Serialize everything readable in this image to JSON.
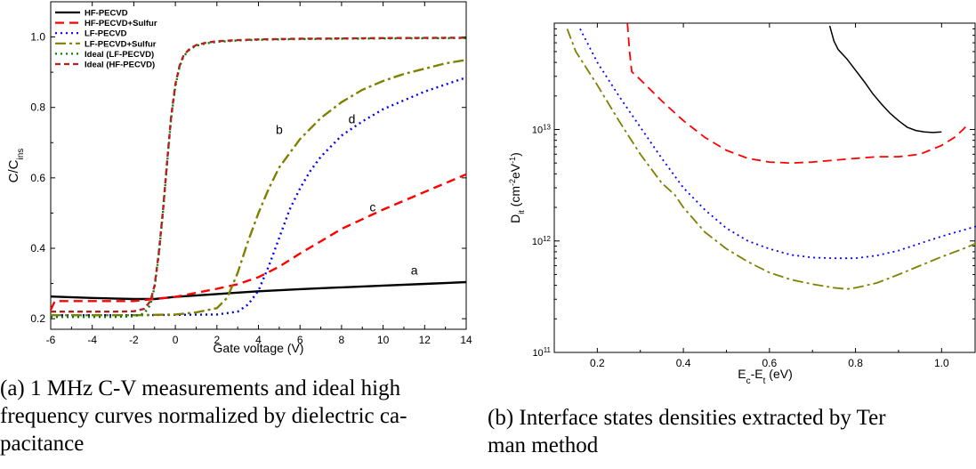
{
  "chart_data": [
    {
      "type": "line",
      "panel": "a",
      "xlabel": "Gate voltage (V)",
      "ylabel_main": "C/C",
      "ylabel_sub": "ins",
      "xlim": [
        -6,
        14
      ],
      "ylim": [
        0.17,
        1.1
      ],
      "xticks": [
        "-6",
        "-4",
        "-2",
        "0",
        "2",
        "4",
        "6",
        "8",
        "10",
        "12",
        "14"
      ],
      "yticks": [
        "0.2",
        "0.4",
        "0.6",
        "0.8",
        "1.0"
      ],
      "legend_position": "top-left",
      "series": [
        {
          "name": "HF-PECVD",
          "color": "#000000",
          "dash": "solid",
          "x": [
            -6,
            -4,
            -2,
            -1,
            0,
            2,
            4,
            6,
            8,
            10,
            12,
            14
          ],
          "y": [
            0.263,
            0.259,
            0.256,
            0.256,
            0.262,
            0.27,
            0.278,
            0.284,
            0.289,
            0.294,
            0.299,
            0.304
          ]
        },
        {
          "name": "HF-PECVD+Sulfur",
          "color": "#ff0000",
          "dash": "long",
          "x": [
            -6,
            -5.8,
            -4,
            -2,
            0,
            2,
            3,
            4,
            5,
            6,
            7,
            8,
            10,
            12,
            14
          ],
          "y": [
            0.225,
            0.25,
            0.25,
            0.25,
            0.262,
            0.285,
            0.298,
            0.318,
            0.348,
            0.385,
            0.42,
            0.455,
            0.51,
            0.56,
            0.61
          ]
        },
        {
          "name": "LF-PECVD",
          "color": "#0000ff",
          "dash": "dot",
          "x": [
            -6,
            -2,
            0,
            2,
            3,
            3.5,
            4,
            4.5,
            5,
            5.5,
            6,
            6.5,
            7,
            8,
            9,
            10,
            11,
            12,
            13,
            14
          ],
          "y": [
            0.21,
            0.21,
            0.211,
            0.212,
            0.22,
            0.24,
            0.28,
            0.35,
            0.43,
            0.51,
            0.57,
            0.62,
            0.66,
            0.72,
            0.76,
            0.795,
            0.82,
            0.845,
            0.865,
            0.885
          ]
        },
        {
          "name": "LF-PECVD+Sulfur",
          "color": "#808000",
          "dash": "dashdot",
          "x": [
            -6,
            -2,
            0,
            1,
            2,
            2.5,
            3,
            3.5,
            4,
            4.5,
            5,
            6,
            7,
            8,
            9,
            10,
            11,
            12,
            13,
            14
          ],
          "y": [
            0.21,
            0.21,
            0.212,
            0.218,
            0.23,
            0.26,
            0.33,
            0.42,
            0.5,
            0.57,
            0.63,
            0.71,
            0.77,
            0.815,
            0.85,
            0.875,
            0.895,
            0.91,
            0.925,
            0.935
          ]
        },
        {
          "name": "Ideal (LF-PECVD)",
          "color": "#008000",
          "dash": "dot",
          "x": [
            -6,
            -3,
            -2,
            -1.5,
            -1.2,
            -1,
            -0.8,
            -0.6,
            -0.4,
            -0.2,
            0,
            0.2,
            0.4,
            0.7,
            1,
            1.5,
            2,
            3,
            4,
            6,
            8,
            10,
            14
          ],
          "y": [
            0.205,
            0.205,
            0.207,
            0.215,
            0.24,
            0.29,
            0.38,
            0.5,
            0.64,
            0.77,
            0.86,
            0.915,
            0.945,
            0.965,
            0.975,
            0.982,
            0.986,
            0.99,
            0.992,
            0.994,
            0.995,
            0.996,
            0.997
          ]
        },
        {
          "name": "Ideal (HF-PECVD)",
          "color": "#b22222",
          "dash": "dash",
          "x": [
            -6,
            -3,
            -2,
            -1.5,
            -1.2,
            -1,
            -0.8,
            -0.6,
            -0.4,
            -0.2,
            0,
            0.2,
            0.4,
            0.7,
            1,
            1.5,
            2,
            3,
            4,
            6,
            8,
            10,
            14
          ],
          "y": [
            0.22,
            0.22,
            0.221,
            0.228,
            0.25,
            0.295,
            0.385,
            0.505,
            0.645,
            0.775,
            0.865,
            0.918,
            0.948,
            0.967,
            0.977,
            0.984,
            0.988,
            0.991,
            0.993,
            0.995,
            0.996,
            0.997,
            0.998
          ]
        }
      ],
      "annotations": [
        {
          "text": "a",
          "x": 11.5,
          "y": 0.325
        },
        {
          "text": "b",
          "x": 5.0,
          "y": 0.725
        },
        {
          "text": "c",
          "x": 9.5,
          "y": 0.505
        },
        {
          "text": "d",
          "x": 8.5,
          "y": 0.755
        }
      ],
      "grid": false
    },
    {
      "type": "line",
      "panel": "b",
      "scale_y": "log",
      "xlabel_main": "E",
      "xlabel_sub1": "c",
      "xlabel_mid": "-E",
      "xlabel_sub2": "t",
      "xlabel_end": " (eV)",
      "ylabel_main": "D",
      "ylabel_sub": "it",
      "ylabel_mid": " (cm",
      "ylabel_sup1": "-2",
      "ylabel_mid2": "eV",
      "ylabel_sup2": "-1",
      "ylabel_end": ")",
      "xlim": [
        0.1,
        1.08
      ],
      "ylim": [
        100000000000.0,
        90000000000000.0
      ],
      "xticks": [
        "0.2",
        "0.4",
        "0.6",
        "0.8",
        "1.0"
      ],
      "ytick_base": "10",
      "ytick_exps": [
        "11",
        "12",
        "13"
      ],
      "grid": false,
      "series": [
        {
          "color": "#000000",
          "dash": "solid",
          "x": [
            0.74,
            0.75,
            0.76,
            0.78,
            0.8,
            0.82,
            0.84,
            0.86,
            0.88,
            0.9,
            0.92,
            0.94,
            0.96,
            0.98,
            1.0
          ],
          "y": [
            85000000000000.0,
            62000000000000.0,
            52000000000000.0,
            43000000000000.0,
            34000000000000.0,
            27000000000000.0,
            21000000000000.0,
            17000000000000.0,
            14000000000000.0,
            12000000000000.0,
            10500000000000.0,
            9800000000000.0,
            9500000000000.0,
            9400000000000.0,
            9500000000000.0
          ]
        },
        {
          "color": "#ff0000",
          "dash": "long",
          "x": [
            0.27,
            0.275,
            0.28,
            0.3,
            0.35,
            0.4,
            0.45,
            0.5,
            0.55,
            0.6,
            0.65,
            0.7,
            0.75,
            0.8,
            0.85,
            0.9,
            0.95,
            1.0,
            1.03,
            1.05,
            1.06
          ],
          "y": [
            90000000000000.0,
            50000000000000.0,
            33000000000000.0,
            28000000000000.0,
            18000000000000.0,
            12000000000000.0,
            8500000000000.0,
            6500000000000.0,
            5500000000000.0,
            5100000000000.0,
            5000000000000.0,
            5100000000000.0,
            5300000000000.0,
            5500000000000.0,
            5700000000000.0,
            5700000000000.0,
            6000000000000.0,
            7200000000000.0,
            8500000000000.0,
            10000000000000.0,
            11000000000000.0
          ]
        },
        {
          "color": "#0000ff",
          "dash": "dot",
          "x": [
            0.16,
            0.2,
            0.25,
            0.3,
            0.35,
            0.4,
            0.45,
            0.5,
            0.55,
            0.6,
            0.65,
            0.7,
            0.75,
            0.8,
            0.85,
            0.9,
            0.95,
            1.0,
            1.05,
            1.08
          ],
          "y": [
            80000000000000.0,
            40000000000000.0,
            20000000000000.0,
            10500000000000.0,
            5500000000000.0,
            3000000000000.0,
            1900000000000.0,
            1300000000000.0,
            1000000000000.0,
            850000000000.0,
            750000000000.0,
            710000000000.0,
            700000000000.0,
            700000000000.0,
            740000000000.0,
            820000000000.0,
            950000000000.0,
            1100000000000.0,
            1250000000000.0,
            1350000000000.0
          ]
        },
        {
          "color": "#808000",
          "dash": "dashdot",
          "x": [
            0.13,
            0.15,
            0.2,
            0.25,
            0.3,
            0.35,
            0.38,
            0.4,
            0.45,
            0.5,
            0.55,
            0.6,
            0.65,
            0.7,
            0.75,
            0.78,
            0.8,
            0.85,
            0.9,
            0.95,
            1.0,
            1.05,
            1.08
          ],
          "y": [
            80000000000000.0,
            50000000000000.0,
            25000000000000.0,
            12000000000000.0,
            6000000000000.0,
            3300000000000.0,
            2600000000000.0,
            2000000000000.0,
            1200000000000.0,
            850000000000.0,
            650000000000.0,
            520000000000.0,
            450000000000.0,
            410000000000.0,
            380000000000.0,
            370000000000.0,
            380000000000.0,
            420000000000.0,
            500000000000.0,
            600000000000.0,
            720000000000.0,
            850000000000.0,
            950000000000.0
          ]
        }
      ]
    }
  ],
  "captions": {
    "a_line1": "(a) 1 MHz C-V measurements and ideal high",
    "a_line2": "frequency curves normalized by dielectric ca-",
    "a_line3": "pacitance",
    "b_line1": "(b) Interface states densities extracted by Ter",
    "b_line2": "man method"
  }
}
